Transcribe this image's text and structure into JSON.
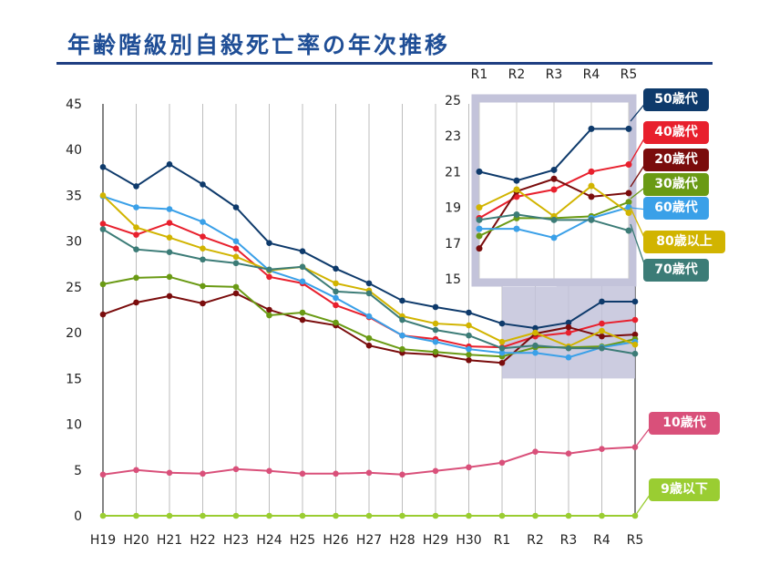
{
  "title": "年齢階級別自殺死亡率の年次推移",
  "chart_data": {
    "type": "line",
    "categories": [
      "H19",
      "H20",
      "H21",
      "H22",
      "H23",
      "H24",
      "H25",
      "H26",
      "H27",
      "H28",
      "H29",
      "H30",
      "R1",
      "R2",
      "R3",
      "R4",
      "R5"
    ],
    "ylim": [
      0,
      45
    ],
    "yticks": [
      0,
      5,
      10,
      15,
      20,
      25,
      30,
      35,
      40,
      45
    ],
    "grid": "vertical",
    "series": [
      {
        "name": "50歳代",
        "color": "#0e3a6b",
        "values": [
          38.1,
          36.0,
          38.4,
          36.2,
          33.7,
          29.8,
          28.9,
          27.0,
          25.4,
          23.5,
          22.8,
          22.2,
          21.0,
          20.5,
          21.1,
          23.4,
          23.4
        ]
      },
      {
        "name": "40歳代",
        "color": "#e8202d",
        "values": [
          31.9,
          30.7,
          32.0,
          30.5,
          29.2,
          26.1,
          25.4,
          23.0,
          21.7,
          19.7,
          19.3,
          18.5,
          18.4,
          19.6,
          20.0,
          21.0,
          21.4
        ]
      },
      {
        "name": "20歳代",
        "color": "#7a0c0c",
        "values": [
          22.0,
          23.3,
          24.0,
          23.2,
          24.3,
          22.5,
          21.4,
          20.8,
          18.6,
          17.8,
          17.6,
          17.0,
          16.7,
          19.9,
          20.6,
          19.6,
          19.8
        ]
      },
      {
        "name": "30歳代",
        "color": "#6a9a14",
        "values": [
          25.3,
          26.0,
          26.1,
          25.1,
          25.0,
          21.9,
          22.2,
          21.1,
          19.4,
          18.2,
          17.9,
          17.6,
          17.4,
          18.4,
          18.4,
          18.5,
          19.3
        ]
      },
      {
        "name": "60歳代",
        "color": "#3aa0e8",
        "values": [
          34.9,
          33.7,
          33.5,
          32.1,
          30.0,
          26.8,
          25.6,
          23.8,
          21.8,
          19.7,
          19.0,
          18.2,
          17.8,
          17.8,
          17.3,
          18.4,
          19.0
        ]
      },
      {
        "name": "80歳以上",
        "color": "#d1b400",
        "values": [
          35.0,
          31.5,
          30.4,
          29.2,
          28.3,
          26.8,
          27.2,
          25.4,
          24.6,
          21.8,
          21.0,
          20.8,
          19.0,
          20.0,
          18.5,
          20.2,
          18.7
        ]
      },
      {
        "name": "70歳代",
        "color": "#3c7c77",
        "values": [
          31.3,
          29.1,
          28.8,
          28.0,
          27.6,
          26.9,
          27.2,
          24.5,
          24.3,
          21.4,
          20.3,
          19.7,
          18.3,
          18.6,
          18.3,
          18.3,
          17.7
        ]
      },
      {
        "name": "10歳代",
        "color": "#d9507a",
        "values": [
          4.5,
          5.0,
          4.7,
          4.6,
          5.1,
          4.9,
          4.6,
          4.6,
          4.7,
          4.5,
          4.9,
          5.3,
          5.8,
          7.0,
          6.8,
          7.3,
          7.5
        ]
      },
      {
        "name": "9歳以下",
        "color": "#9acd32",
        "values": [
          0,
          0,
          0,
          0,
          0,
          0,
          0,
          0,
          0,
          0,
          0,
          0,
          0,
          0,
          0,
          0,
          0
        ]
      }
    ],
    "inset": {
      "categories": [
        "R1",
        "R2",
        "R3",
        "R4",
        "R5"
      ],
      "ylim": [
        15,
        25
      ],
      "yticks": [
        15,
        17,
        19,
        21,
        23,
        25
      ]
    }
  }
}
